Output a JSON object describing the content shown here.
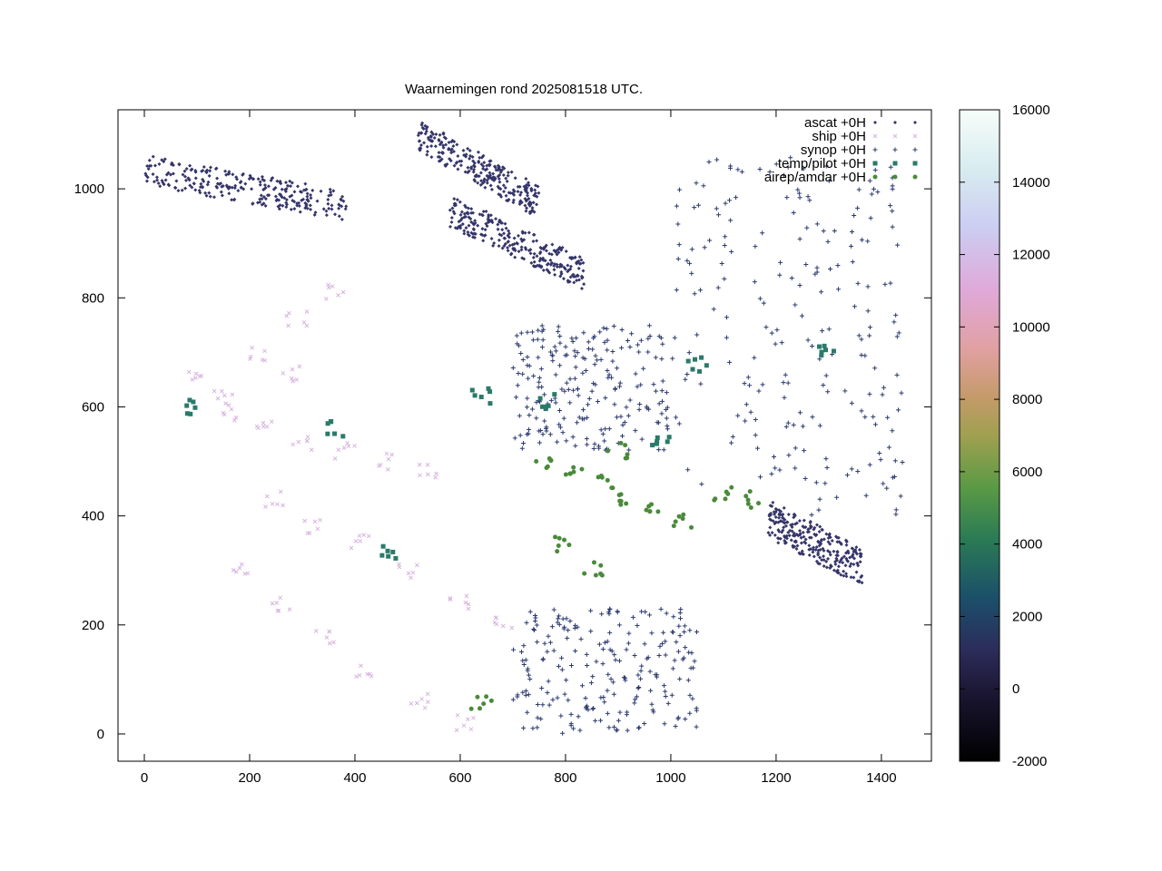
{
  "chart_data": {
    "type": "scatter",
    "title": "Waarnemingen rond 2025081518 UTC.",
    "xlabel": "",
    "ylabel": "",
    "xlim": [
      -50,
      1495
    ],
    "ylim": [
      -50,
      1145
    ],
    "x_ticks": [
      0,
      200,
      400,
      600,
      800,
      1000,
      1200,
      1400
    ],
    "y_ticks": [
      0,
      200,
      400,
      600,
      800,
      1000
    ],
    "grid": false,
    "legend_position": "top-right",
    "series": [
      {
        "name": "ascat +0H",
        "marker": "diamond-small",
        "color": "#35356a",
        "regions": [
          {
            "band": [
              [
                0,
                1035
              ],
              [
                385,
                968
              ]
            ],
            "width": 55
          },
          {
            "band": [
              [
                520,
                1100
              ],
              [
                750,
                975
              ]
            ],
            "width": 60
          },
          {
            "band": [
              [
                580,
                960
              ],
              [
                835,
                845
              ]
            ],
            "width": 60
          },
          {
            "band": [
              [
                1185,
                395
              ],
              [
                1365,
                305
              ]
            ],
            "width": 70
          }
        ]
      },
      {
        "name": "ship +0H",
        "marker": "x",
        "color": "#d8b5e0",
        "points": [
          [
            170,
            590
          ],
          [
            230,
            560
          ],
          [
            300,
            530
          ],
          [
            380,
            520
          ],
          [
            460,
            500
          ],
          [
            540,
            480
          ],
          [
            250,
            430
          ],
          [
            320,
            380
          ],
          [
            410,
            350
          ],
          [
            500,
            300
          ],
          [
            600,
            240
          ],
          [
            680,
            200
          ],
          [
            180,
            300
          ],
          [
            260,
            240
          ],
          [
            340,
            180
          ],
          [
            420,
            120
          ],
          [
            520,
            60
          ],
          [
            610,
            20
          ],
          [
            90,
            650
          ],
          [
            150,
            620
          ],
          [
            210,
            700
          ],
          [
            290,
            760
          ],
          [
            360,
            810
          ],
          [
            280,
            660
          ]
        ]
      },
      {
        "name": "synop +0H",
        "marker": "plus",
        "color": "#2c3a6e",
        "regions": [
          {
            "box": [
              1000,
              1440,
              400,
              1060
            ]
          },
          {
            "box": [
              700,
              1000,
              520,
              750
            ]
          },
          {
            "box": [
              700,
              1050,
              0,
              230
            ]
          }
        ]
      },
      {
        "name": "temp/pilot +0H",
        "marker": "square",
        "color": "#2a7a6a",
        "points": [
          [
            100,
            600
          ],
          [
            360,
            560
          ],
          [
            470,
            330
          ],
          [
            640,
            620
          ],
          [
            760,
            610
          ],
          [
            980,
            540
          ],
          [
            1050,
            680
          ],
          [
            1300,
            700
          ]
        ]
      },
      {
        "name": "airep/amdar +0H",
        "marker": "dot",
        "color": "#4a8a3a",
        "points": [
          [
            760,
            500
          ],
          [
            820,
            480
          ],
          [
            880,
            460
          ],
          [
            920,
            430
          ],
          [
            960,
            420
          ],
          [
            1020,
            390
          ],
          [
            1100,
            440
          ],
          [
            1160,
            430
          ],
          [
            800,
            350
          ],
          [
            850,
            300
          ],
          [
            640,
            60
          ],
          [
            900,
            520
          ]
        ]
      }
    ],
    "colorbar": {
      "min": -2000,
      "max": 16000,
      "ticks": [
        -2000,
        0,
        2000,
        4000,
        6000,
        8000,
        10000,
        12000,
        14000,
        16000
      ],
      "palette": "cubehelix"
    }
  }
}
